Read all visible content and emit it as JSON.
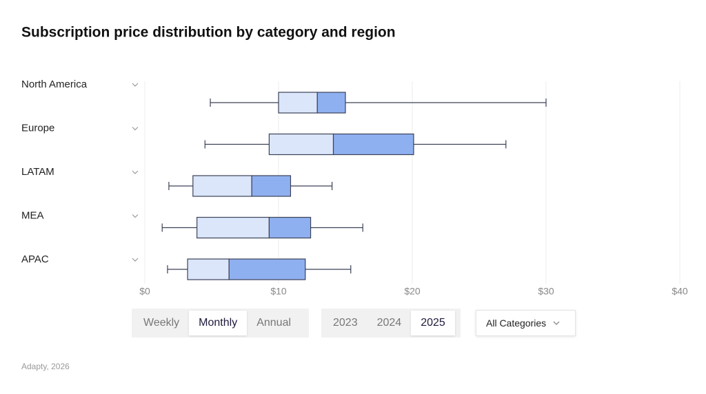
{
  "chart_data": {
    "type": "boxplot",
    "title": "Subscription price distribution by category and region",
    "categories": [
      "North America",
      "Europe",
      "LATAM",
      "MEA",
      "APAC"
    ],
    "stats": [
      {
        "min": 4.9,
        "q1": 10,
        "median": 12.9,
        "q3": 15,
        "max": 30
      },
      {
        "min": 4.5,
        "q1": 9.3,
        "median": 14.1,
        "q3": 20.1,
        "max": 27
      },
      {
        "min": 1.8,
        "q1": 3.6,
        "median": 8,
        "q3": 10.9,
        "max": 14
      },
      {
        "min": 1.3,
        "q1": 3.9,
        "median": 9.3,
        "q3": 12.4,
        "max": 16.3
      },
      {
        "min": 1.7,
        "q1": 3.2,
        "median": 6.3,
        "q3": 12,
        "max": 15.4
      }
    ],
    "lower_color": "#dbe6fb",
    "upper_color": "#8fb0f0",
    "stroke_color": "#3a4156",
    "xlim": [
      0,
      40
    ],
    "xticks": [
      {
        "value": 0,
        "label": "$0"
      },
      {
        "value": 10,
        "label": "$10"
      },
      {
        "value": 20,
        "label": "$20"
      },
      {
        "value": 30,
        "label": "$30"
      },
      {
        "value": 40,
        "label": "$40"
      }
    ],
    "grid": true
  },
  "controls": {
    "period": {
      "options": [
        "Weekly",
        "Monthly",
        "Annual"
      ],
      "selected": 1
    },
    "year": {
      "options": [
        "2023",
        "2024",
        "2025"
      ],
      "selected": 2
    },
    "category": "All Categories"
  },
  "source": "Adapty, 2026"
}
